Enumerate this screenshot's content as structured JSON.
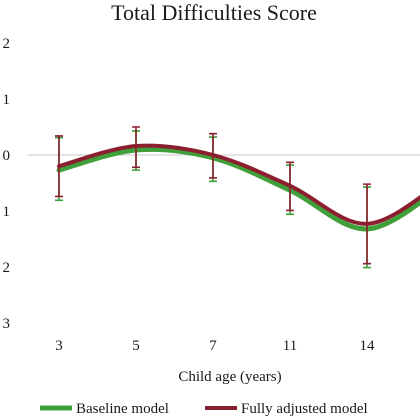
{
  "chart_data": {
    "type": "line",
    "title": "Total Difficulties Score",
    "xlabel": "Child age (years)",
    "categories": [
      "3",
      "5",
      "7",
      "11",
      "14",
      ""
    ],
    "yticks": [
      2,
      1,
      0,
      -1,
      -2,
      -3
    ],
    "ytick_labels": [
      "2",
      "1",
      "0",
      "1",
      "2",
      "3"
    ],
    "ylim": [
      -3,
      2
    ],
    "smooth": true,
    "error_bars": true,
    "reference_line": 0,
    "grid": false,
    "legend": "bottom",
    "series": [
      {
        "name": "Baseline model",
        "color": "#3f9f38",
        "values": [
          -0.27,
          0.09,
          -0.05,
          -0.63,
          -1.32,
          -0.54
        ],
        "lower": [
          -0.81,
          -0.27,
          -0.47,
          -1.06,
          -2.01,
          null
        ],
        "upper": [
          0.31,
          0.43,
          0.32,
          -0.18,
          -0.57,
          null
        ]
      },
      {
        "name": "Fully adjusted model",
        "color": "#8b1f2f",
        "values": [
          -0.2,
          0.16,
          0.0,
          -0.55,
          -1.23,
          -0.45
        ],
        "lower": [
          -0.74,
          -0.22,
          -0.41,
          -0.99,
          -1.94,
          null
        ],
        "upper": [
          0.34,
          0.5,
          0.38,
          -0.13,
          -0.52,
          null
        ]
      }
    ]
  }
}
